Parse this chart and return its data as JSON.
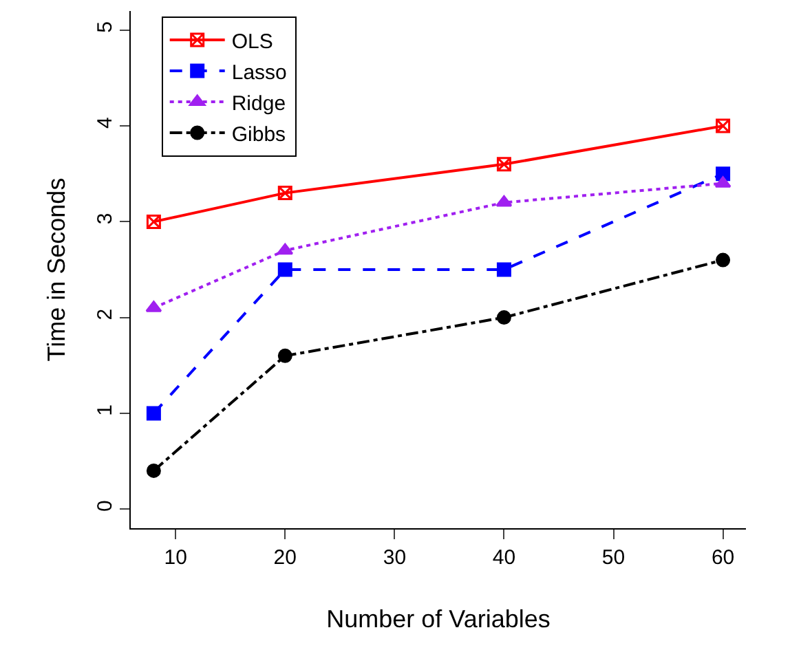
{
  "chart_data": {
    "type": "line",
    "xlabel": "Number of Variables",
    "ylabel": "Time in Seconds",
    "x": [
      8,
      20,
      40,
      60
    ],
    "series": [
      {
        "name": "OLS",
        "color": "#ff0000",
        "values": [
          3.0,
          3.3,
          3.6,
          4.0
        ],
        "marker": "cross",
        "line_style": "solid"
      },
      {
        "name": "Lasso",
        "color": "#0000ff",
        "values": [
          1.0,
          2.5,
          2.5,
          3.5
        ],
        "marker": "square",
        "line_style": "dashed"
      },
      {
        "name": "Ridge",
        "color": "#a020f0",
        "values": [
          2.1,
          2.7,
          3.2,
          3.4
        ],
        "marker": "triangle",
        "line_style": "dotted"
      },
      {
        "name": "Gibbs",
        "color": "#000000",
        "values": [
          0.4,
          1.6,
          2.0,
          2.6
        ],
        "marker": "circle",
        "line_style": "dashdot"
      }
    ],
    "xlim": [
      5.9,
      62.1
    ],
    "xticks": [
      10,
      20,
      30,
      40,
      50,
      60
    ],
    "ylim": [
      -0.2,
      5.2
    ],
    "yticks": [
      0,
      1,
      2,
      3,
      4,
      5
    ],
    "legend": "top left"
  }
}
